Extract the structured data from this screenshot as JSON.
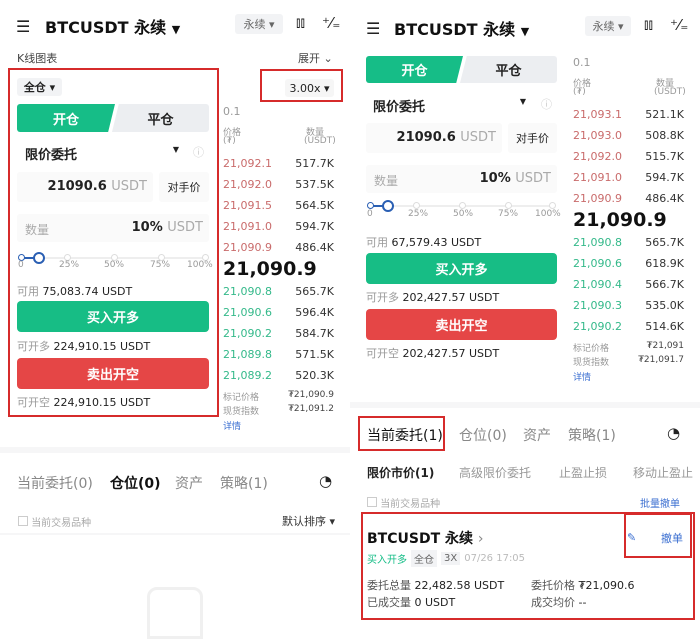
{
  "header": {
    "title": "BTCUSDT 永续",
    "contract_type": "永续",
    "dropdown_arrow": "▼"
  },
  "left": {
    "kline_label": "K线图表",
    "expand_label": "展开",
    "margin_mode": "全仓",
    "leverage": "3.00x",
    "tab_open": "开仓",
    "tab_close": "平仓",
    "order_type": "限价委托",
    "price_value": "21090.6",
    "price_unit": "USDT",
    "counter_price": "对手价",
    "qty_placeholder": "数量",
    "qty_value": "10%",
    "qty_unit": "USDT",
    "slider_percent": 10,
    "slider_labels": [
      "0",
      "25%",
      "50%",
      "75%",
      "100%"
    ],
    "available_label": "可用",
    "available_value": "75,083.74 USDT",
    "buy_label": "买入开多",
    "max_long_label": "可开多",
    "max_long_value": "224,910.15 USDT",
    "sell_label": "卖出开空",
    "max_short_label": "可开空",
    "max_short_value": "224,910.15 USDT",
    "orderbook": {
      "precision": "0.1",
      "price_header": "价格",
      "price_unit": "(₮)",
      "qty_header": "数量",
      "qty_unit": "(USDT)",
      "asks": [
        [
          "21,092.1",
          "517.7K"
        ],
        [
          "21,092.0",
          "537.5K"
        ],
        [
          "21,091.5",
          "564.5K"
        ],
        [
          "21,091.0",
          "594.7K"
        ],
        [
          "21,090.9",
          "486.4K"
        ]
      ],
      "last_price": "21,090.9",
      "bids": [
        [
          "21,090.8",
          "565.7K"
        ],
        [
          "21,090.6",
          "596.4K"
        ],
        [
          "21,090.2",
          "584.7K"
        ],
        [
          "21,089.8",
          "571.5K"
        ],
        [
          "21,089.2",
          "520.3K"
        ]
      ],
      "mark_label": "标记价格",
      "mark_value": "₮21,090.9",
      "index_label": "现货指数",
      "index_value": "₮21,091.2",
      "details": "详情"
    },
    "bottom_tabs": [
      "当前委托(0)",
      "仓位(0)",
      "资产",
      "策略(1)"
    ],
    "filter_label": "当前交易品种",
    "sort_label": "默认排序"
  },
  "right": {
    "tab_open": "开仓",
    "tab_close": "平仓",
    "order_type": "限价委托",
    "price_value": "21090.6",
    "price_unit": "USDT",
    "counter_price": "对手价",
    "qty_placeholder": "数量",
    "qty_value": "10%",
    "qty_unit": "USDT",
    "slider_labels": [
      "0",
      "25%",
      "50%",
      "75%",
      "100%"
    ],
    "available_label": "可用",
    "available_value": "67,579.43 USDT",
    "buy_label": "买入开多",
    "max_long_label": "可开多",
    "max_long_value": "202,427.57 USDT",
    "sell_label": "卖出开空",
    "max_short_label": "可开空",
    "max_short_value": "202,427.57 USDT",
    "orderbook": {
      "precision": "0.1",
      "price_header": "价格",
      "price_unit": "(₮)",
      "qty_header": "数量",
      "qty_unit": "(USDT)",
      "asks": [
        [
          "21,093.1",
          "521.1K"
        ],
        [
          "21,093.0",
          "508.8K"
        ],
        [
          "21,092.0",
          "515.7K"
        ],
        [
          "21,091.0",
          "594.7K"
        ],
        [
          "21,090.9",
          "486.4K"
        ]
      ],
      "last_price": "21,090.9",
      "bids": [
        [
          "21,090.8",
          "565.7K"
        ],
        [
          "21,090.6",
          "618.9K"
        ],
        [
          "21,090.4",
          "566.7K"
        ],
        [
          "21,090.3",
          "535.0K"
        ],
        [
          "21,090.2",
          "514.6K"
        ]
      ],
      "mark_label": "标记价格",
      "mark_value": "₮21,091",
      "index_label": "现货指数",
      "index_value": "₮21,091.7",
      "details": "详情"
    },
    "bottom_tabs": [
      "当前委托(1)",
      "仓位(0)",
      "资产",
      "策略(1)"
    ],
    "sub_tabs": [
      "限价市价(1)",
      "高级限价委托",
      "止盈止损",
      "移动止盈止"
    ],
    "filter_label": "当前交易品种",
    "batch_cancel": "批量撤单",
    "order": {
      "symbol": "BTCUSDT 永续",
      "side": "买入开多",
      "margin": "全仓",
      "leverage": "3X",
      "time": "07/26 17:05",
      "total_label": "委托总量",
      "total_value": "22,482.58 USDT",
      "price_label": "委托价格",
      "price_value": "₮21,090.6",
      "filled_label": "已成交量",
      "filled_value": "0 USDT",
      "avg_label": "成交均价",
      "avg_value": "--",
      "cancel": "撤单"
    }
  },
  "colors": {
    "green": "#16bd87",
    "red": "#e54646",
    "highlight": "#d62b2b",
    "link": "#3b6fd1"
  }
}
